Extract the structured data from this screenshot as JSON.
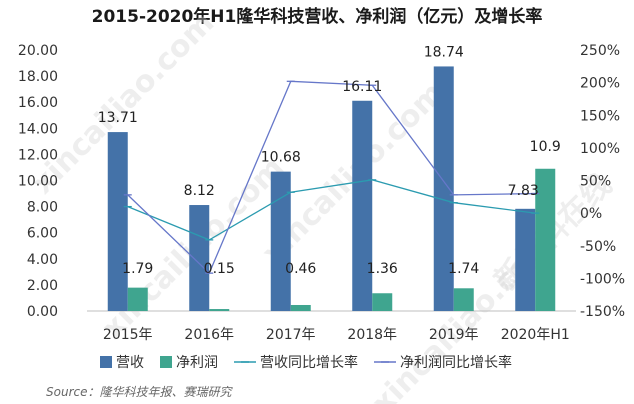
{
  "chart_data": {
    "type": "bar",
    "title": "2015-2020年H1隆华科技营收、净利润（亿元）及增长率",
    "categories": [
      "2015年",
      "2016年",
      "2017年",
      "2018年",
      "2019年",
      "2020年H1"
    ],
    "series": [
      {
        "name": "营收",
        "type": "bar",
        "axis": "left",
        "color": "#4472a8",
        "values": [
          13.71,
          8.12,
          10.68,
          16.11,
          18.74,
          7.83
        ]
      },
      {
        "name": "净利润",
        "type": "bar",
        "axis": "left",
        "color": "#3fa58f",
        "values": [
          1.79,
          0.15,
          0.46,
          1.36,
          1.74,
          10.9
        ]
      },
      {
        "name": "营收同比增长率",
        "type": "line",
        "axis": "right",
        "color": "#2b9bb0",
        "values": [
          10,
          -41,
          32,
          51,
          16,
          0
        ]
      },
      {
        "name": "净利润同比增长率",
        "type": "line",
        "axis": "right",
        "color": "#6677c9",
        "values": [
          28,
          -92,
          202,
          196,
          28,
          30
        ]
      }
    ],
    "data_labels": {
      "营收": [
        "13.71",
        "8.12",
        "10.68",
        "16.11",
        "18.74",
        "7.83"
      ],
      "净利润": [
        "1.79",
        "0.15",
        "0.46",
        "1.36",
        "1.74",
        "10.9"
      ]
    },
    "ylim_left": [
      0,
      20
    ],
    "ylim_right": [
      -150,
      250
    ],
    "left_ticks": [
      "20.00",
      "18.00",
      "16.00",
      "14.00",
      "12.00",
      "10.00",
      "8.00",
      "6.00",
      "4.00",
      "2.00",
      "0.00"
    ],
    "right_ticks": [
      "250%",
      "200%",
      "150%",
      "100%",
      "50%",
      "0%",
      "-50%",
      "-100%",
      "-150%"
    ],
    "grid": false,
    "legend_position": "bottom",
    "source": "Source：隆华科技年报、赛瑞研究"
  },
  "watermark": [
    "xincailiao.com",
    "新材料在线"
  ]
}
